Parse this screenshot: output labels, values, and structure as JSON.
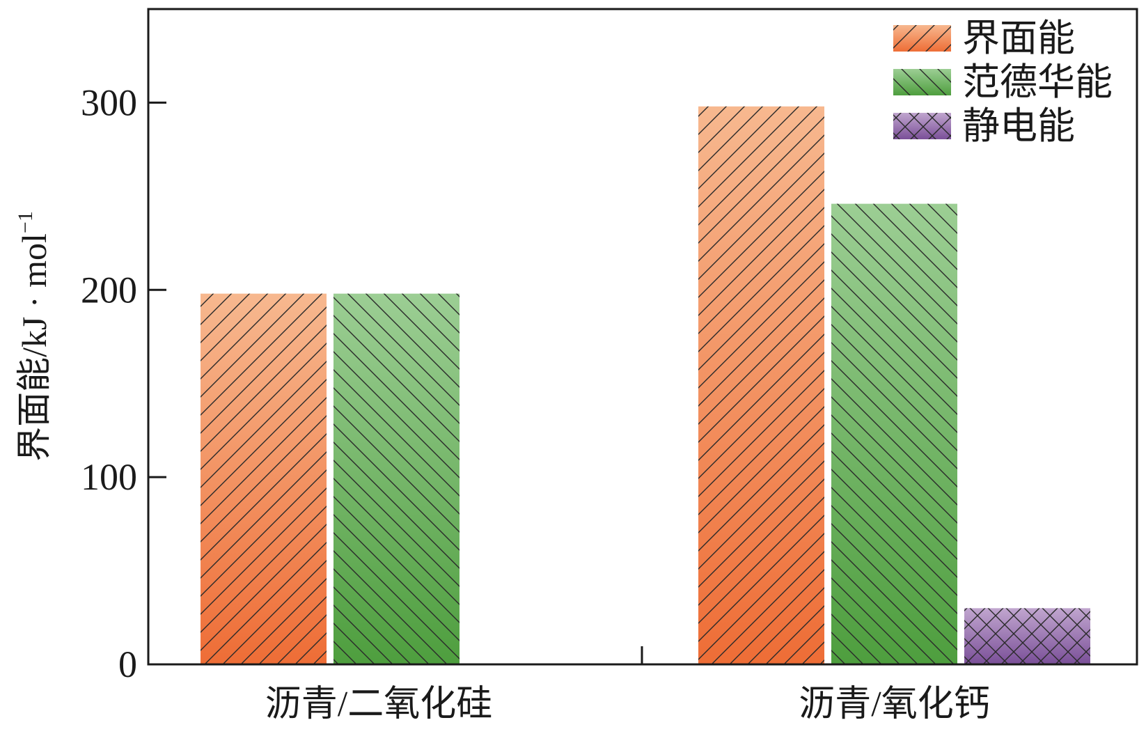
{
  "chart_data": {
    "type": "bar",
    "title": "",
    "xlabel": "",
    "ylabel": "界面能/kJ · mol",
    "ylabel_superscript": "−1",
    "categories": [
      "沥青/二氧化硅",
      "沥青/氧化钙"
    ],
    "ylim": [
      0,
      350
    ],
    "yticks": [
      0,
      100,
      200,
      300
    ],
    "grid": false,
    "legend_position": "top-right",
    "series": [
      {
        "name": "界面能",
        "values": [
          198,
          298
        ],
        "color_top": "#f7b88f",
        "color_bottom": "#ee6d36",
        "hatch": "forward-diagonal"
      },
      {
        "name": "范德华能",
        "values": [
          198,
          246
        ],
        "color_top": "#9cce94",
        "color_bottom": "#4e9e3e",
        "hatch": "back-diagonal"
      },
      {
        "name": "静电能",
        "values": [
          null,
          30
        ],
        "color_top": "#c1a6cf",
        "color_bottom": "#7a4f98",
        "hatch": "crosshatch"
      }
    ]
  }
}
